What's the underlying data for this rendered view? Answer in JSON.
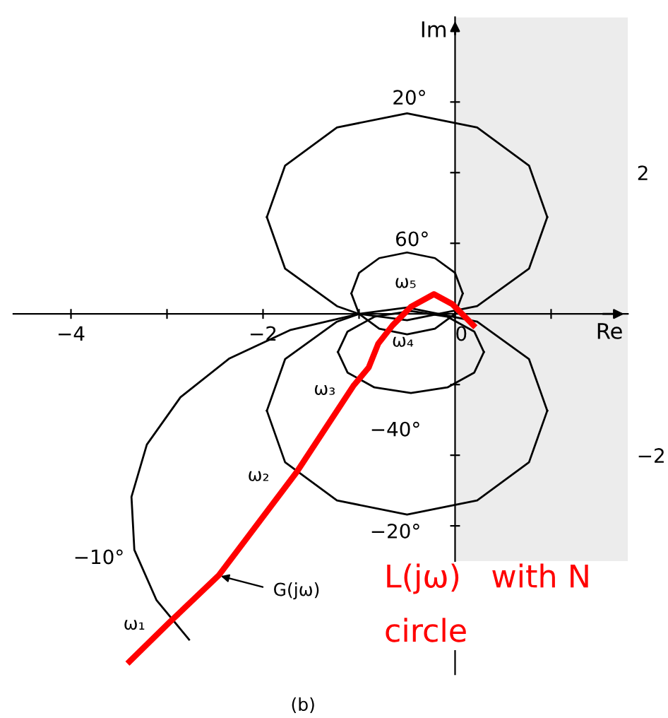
{
  "chart_data": {
    "type": "line",
    "xlabel": "Re",
    "ylabel": "Im",
    "xlim": [
      -4.6,
      1.8
    ],
    "ylim": [
      -5.1,
      4.2
    ],
    "xticks": [
      -4,
      {
        "value": -3,
        "label": null
      },
      -2,
      {
        "value": -1,
        "label": null
      },
      0,
      {
        "value": 1,
        "label": null
      }
    ],
    "yticks": [
      {
        "value": -3,
        "label": null
      },
      -2,
      {
        "value": -1,
        "label": null
      },
      {
        "value": 1,
        "label": null
      },
      2,
      {
        "value": 3,
        "label": null
      }
    ],
    "marker": "none",
    "line_style": "solid",
    "bands": [
      {
        "axis": "x",
        "from": 0,
        "to": 1.8,
        "color": "#ececec"
      }
    ],
    "series": [
      {
        "color": "#000000",
        "x": [
          -1.96,
          -1.77,
          -1.23,
          -0.5,
          0.23,
          0.77,
          0.96
        ],
        "values": [
          1.37,
          2.1,
          2.64,
          2.84,
          2.64,
          2.1,
          1.37
        ]
      },
      {
        "color": "#000000",
        "x": [
          -1.96,
          -1.77,
          -1.23,
          -1.0,
          -0.5,
          0.23,
          0.77,
          0.96
        ],
        "values": [
          1.37,
          0.64,
          0.11,
          0.0,
          -0.09,
          0.11,
          0.64,
          1.37
        ]
      },
      {
        "color": "#000000",
        "x": [
          -1.96,
          -1.77,
          -1.23,
          -0.5,
          0.23,
          0.77,
          0.96
        ],
        "values": [
          -1.37,
          -2.1,
          -2.64,
          -2.84,
          -2.64,
          -2.1,
          -1.37
        ]
      },
      {
        "color": "#000000",
        "x": [
          -1.96,
          -1.77,
          -1.23,
          -1.0,
          -0.5,
          0.23,
          0.77,
          0.96
        ],
        "values": [
          -1.37,
          -0.64,
          -0.11,
          0.0,
          0.09,
          -0.11,
          -0.64,
          -1.37
        ]
      },
      {
        "color": "#000000",
        "x": [
          -1.08,
          -1.0,
          -0.79,
          -0.5,
          -0.21,
          0.0,
          0.08
        ],
        "values": [
          0.29,
          0.58,
          0.79,
          0.87,
          0.79,
          0.58,
          0.29
        ]
      },
      {
        "color": "#000000",
        "x": [
          -1.08,
          -1.0,
          -0.79,
          -0.5,
          -0.21,
          0.0,
          0.08
        ],
        "values": [
          0.29,
          0.0,
          -0.21,
          -0.29,
          -0.21,
          0.0,
          0.29
        ]
      },
      {
        "color": "#000000",
        "x": [
          -1.22,
          -1.12,
          -0.84,
          -0.46,
          -0.08,
          0.2,
          0.3
        ],
        "values": [
          -0.54,
          -0.25,
          -0.04,
          0.04,
          -0.04,
          -0.25,
          -0.54
        ]
      },
      {
        "color": "#000000",
        "x": [
          -1.22,
          -1.12,
          -0.84,
          -0.46,
          -0.08,
          0.2,
          0.3
        ],
        "values": [
          -0.54,
          -0.83,
          -1.04,
          -1.12,
          -1.04,
          -0.83,
          -0.54
        ]
      },
      {
        "color": "#000000",
        "x": [
          -1.0,
          -1.72,
          -2.35,
          -2.86,
          -3.21,
          -3.37,
          -3.34,
          -3.11,
          -2.77
        ],
        "values": [
          0.0,
          -0.23,
          -0.63,
          -1.18,
          -1.85,
          -2.59,
          -3.34,
          -4.05,
          -4.61
        ]
      },
      {
        "color": "#ff0000",
        "x": [
          -3.39,
          -2.97,
          -2.46,
          -1.65,
          -1.06,
          -0.9,
          -0.8,
          -0.65,
          -0.46,
          -0.22,
          -0.03,
          0.19
        ],
        "values": [
          -4.92,
          -4.36,
          -3.7,
          -2.24,
          -1.02,
          -0.76,
          -0.42,
          -0.16,
          0.1,
          0.28,
          0.14,
          -0.16
        ]
      }
    ],
    "annotations": [
      "20°",
      "60°",
      "−40°",
      "−20°",
      "−10°",
      "ω₅",
      "ω₄",
      "ω₃",
      "ω₂",
      "ω₁",
      "G(jω)",
      "L(jω)   with N\ncircle",
      "(b)"
    ]
  }
}
